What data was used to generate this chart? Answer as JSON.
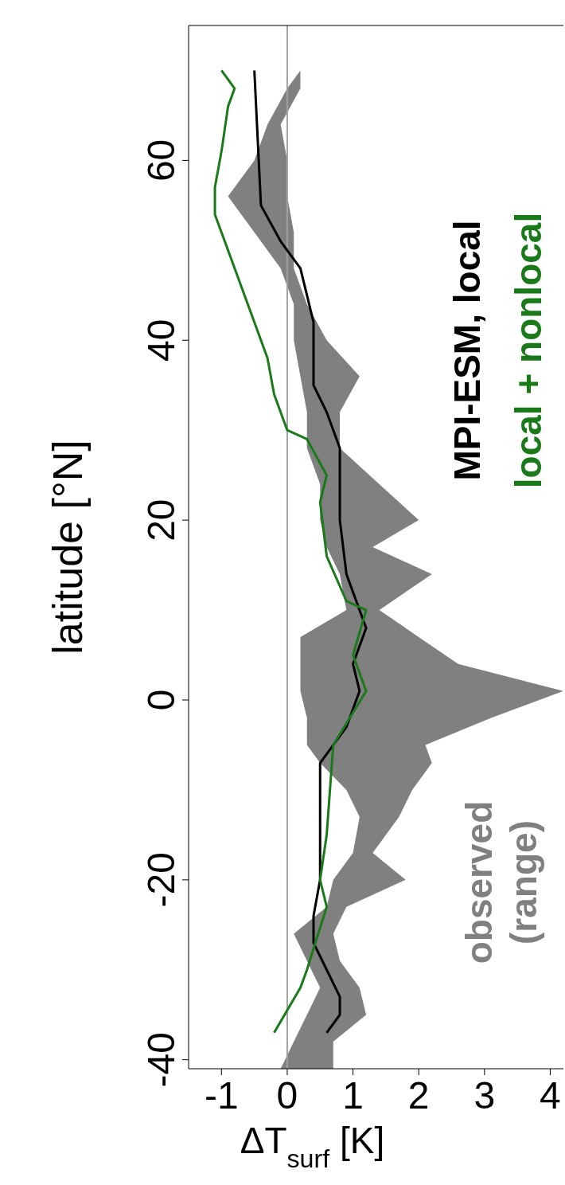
{
  "chart_data": {
    "type": "line",
    "orientation": "horizontal",
    "xlabel": "ΔT$_{surf}$ [K]",
    "ylabel": "latitude [°N]",
    "xlim": [
      -1.5,
      4.2
    ],
    "xticks": [
      -1,
      0,
      1,
      2,
      3,
      4
    ],
    "ylim": [
      -41,
      75
    ],
    "yticks": [
      -40,
      -20,
      0,
      20,
      40,
      60
    ],
    "grid": false,
    "legend": false,
    "marker": "none",
    "line_style": "solid",
    "ref_lines": [
      {
        "axis": "x",
        "value": 0,
        "color": "#a0a0a0"
      }
    ],
    "series": [
      {
        "name": "observed (range)",
        "type": "area",
        "color": "#808080",
        "x": [
          70,
          68,
          64,
          60,
          56,
          52,
          48,
          44,
          40,
          36,
          32,
          28,
          24,
          20,
          17,
          14,
          10,
          7,
          4,
          1,
          -2,
          -5,
          -7,
          -10,
          -13,
          -17,
          -20,
          -23,
          -26,
          -29,
          -32,
          -35,
          -38,
          -41
        ],
        "values": [
          null,
          null,
          null,
          null,
          null,
          null,
          null,
          null,
          null,
          null,
          null,
          null,
          null,
          null,
          null,
          null,
          null,
          null,
          null,
          null,
          null,
          null,
          null,
          null,
          null,
          null,
          null,
          null,
          null,
          null,
          null,
          null,
          null,
          null
        ],
        "lower": [
          0.2,
          0.0,
          -0.3,
          -0.5,
          -0.9,
          -0.5,
          -0.1,
          0.1,
          0.1,
          0.2,
          0.3,
          0.3,
          0.5,
          0.5,
          0.6,
          0.8,
          0.9,
          0.2,
          0.2,
          0.2,
          0.3,
          0.3,
          0.5,
          0.9,
          1.1,
          1.0,
          0.7,
          0.6,
          0.1,
          0.3,
          0.5,
          0.3,
          0.1,
          -0.1
        ],
        "upper": [
          0.2,
          0.2,
          -0.1,
          0.0,
          0.0,
          0.1,
          0.1,
          0.3,
          0.6,
          1.1,
          0.8,
          0.8,
          1.4,
          2.0,
          1.3,
          2.2,
          1.4,
          2.0,
          2.6,
          4.2,
          3.1,
          2.1,
          2.2,
          1.9,
          1.7,
          1.3,
          1.8,
          0.9,
          0.7,
          0.8,
          1.1,
          1.2,
          0.7,
          0.7
        ]
      },
      {
        "name": "MPI-ESM, local",
        "color": "#000000",
        "x": [
          70,
          55,
          51,
          48,
          42,
          35,
          32,
          28,
          20,
          14,
          8,
          4,
          1,
          -3,
          -7,
          -20,
          -24,
          -27,
          -30,
          -33,
          -35,
          -37
        ],
        "values": [
          -0.5,
          -0.4,
          -0.1,
          0.2,
          0.4,
          0.4,
          0.6,
          0.8,
          0.8,
          0.9,
          1.2,
          1.0,
          1.1,
          0.9,
          0.5,
          0.5,
          0.4,
          0.4,
          0.6,
          0.8,
          0.8,
          0.6
        ]
      },
      {
        "name": "local + nonlocal",
        "color": "#1a7a1a",
        "x": [
          70,
          68,
          66,
          61,
          57,
          54,
          50,
          44,
          38,
          34,
          30,
          29,
          25,
          22,
          16,
          11,
          10,
          5,
          1,
          -5,
          -15,
          -20,
          -23,
          -30,
          -32,
          -37
        ],
        "values": [
          -1.0,
          -0.8,
          -0.9,
          -1.0,
          -1.1,
          -1.1,
          -0.9,
          -0.6,
          -0.3,
          -0.2,
          0.0,
          0.3,
          0.6,
          0.5,
          0.6,
          0.9,
          1.2,
          1.0,
          1.2,
          0.7,
          0.6,
          0.5,
          0.6,
          0.3,
          0.2,
          -0.2
        ]
      }
    ]
  }
}
